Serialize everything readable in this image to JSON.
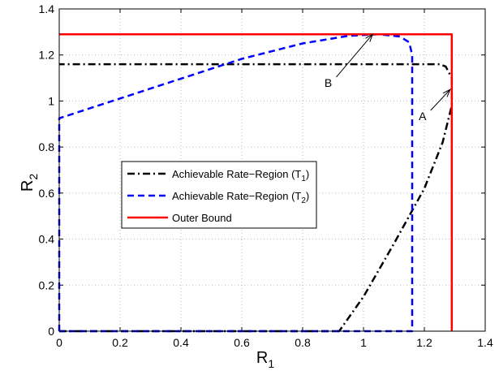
{
  "chart_data": {
    "type": "line",
    "xlabel": "R",
    "xlabel_sub": "1",
    "ylabel": "R",
    "ylabel_sub": "2",
    "xlim": [
      0,
      1.4
    ],
    "ylim": [
      0,
      1.4
    ],
    "xticks": [
      "0",
      "0.2",
      "0.4",
      "0.6",
      "0.8",
      "1",
      "1.2",
      "1.4"
    ],
    "yticks": [
      "0",
      "0.2",
      "0.4",
      "0.6",
      "0.8",
      "1",
      "1.2",
      "1.4"
    ],
    "grid": true,
    "legend_position": "center-left",
    "series": [
      {
        "name": "Achievable Rate−Region (T",
        "name_sub": "1",
        "name_suffix": ")",
        "color": "#000000",
        "style": "dashdot",
        "points": [
          [
            0,
            0
          ],
          [
            0.92,
            0
          ],
          [
            1.0,
            0.15
          ],
          [
            1.1,
            0.38
          ],
          [
            1.2,
            0.62
          ],
          [
            1.26,
            0.82
          ],
          [
            1.29,
            0.98
          ],
          [
            1.29,
            1.1
          ],
          [
            1.27,
            1.15
          ],
          [
            1.25,
            1.16
          ],
          [
            0,
            1.16
          ]
        ]
      },
      {
        "name": "Achievable Rate−Region (T",
        "name_sub": "2",
        "name_suffix": ")",
        "color": "#0000ff",
        "style": "dashed",
        "points": [
          [
            0,
            0
          ],
          [
            0,
            0.925
          ],
          [
            0.2,
            1.011
          ],
          [
            0.4,
            1.097
          ],
          [
            0.6,
            1.183
          ],
          [
            0.8,
            1.25
          ],
          [
            0.95,
            1.283
          ],
          [
            1.05,
            1.29
          ],
          [
            1.12,
            1.28
          ],
          [
            1.15,
            1.255
          ],
          [
            1.16,
            1.2
          ],
          [
            1.16,
            0
          ],
          [
            0,
            0
          ]
        ]
      },
      {
        "name": "Outer Bound",
        "color": "#ff0000",
        "style": "solid",
        "points": [
          [
            0,
            1.29
          ],
          [
            1.29,
            1.29
          ],
          [
            1.29,
            0
          ]
        ]
      }
    ],
    "annotations": [
      {
        "label": "A",
        "text_at": [
          1.21,
          0.945
        ],
        "arrow_to": [
          1.285,
          1.05
        ]
      },
      {
        "label": "B",
        "text_at": [
          0.9,
          1.09
        ],
        "arrow_to": [
          1.03,
          1.29
        ]
      }
    ]
  }
}
